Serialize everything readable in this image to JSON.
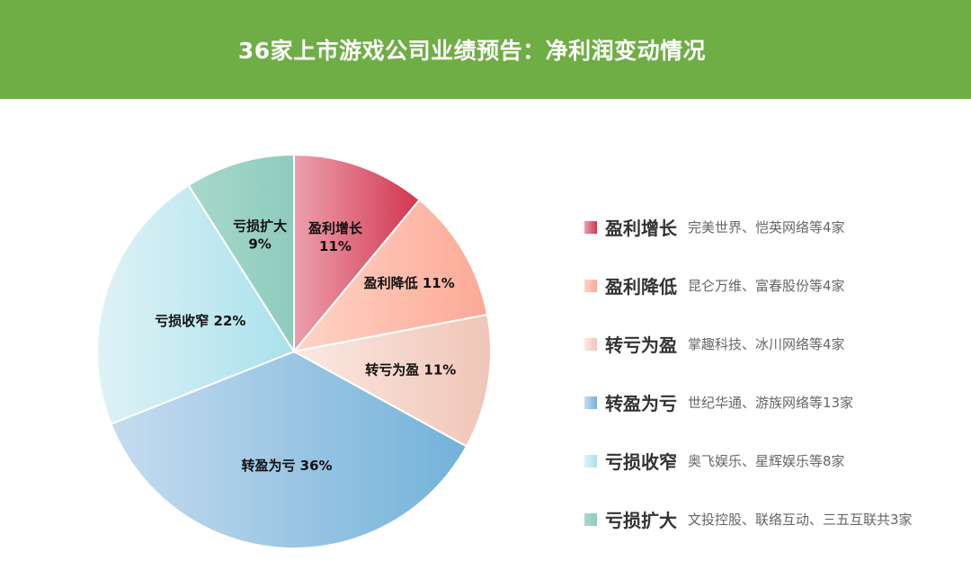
{
  "header": {
    "title": "36家上市游戏公司业绩预告：净利润变动情况",
    "background_color": "#6fad45"
  },
  "chart_data": {
    "type": "pie",
    "title": "36家上市游戏公司业绩预告：净利润变动情况",
    "legend_position": "right",
    "slices": [
      {
        "label": "盈利增长",
        "value": 11,
        "value_label": "11%",
        "count": 4,
        "desc": "完美世界、恺英网络等4家",
        "color_start": "#eda0ad",
        "color_end": "#d1364f"
      },
      {
        "label": "盈利降低",
        "value": 11,
        "value_label": "11%",
        "count": 4,
        "desc": "昆仑万维、富春股份等4家",
        "color_start": "#ffd4c6",
        "color_end": "#fca996"
      },
      {
        "label": "转亏为盈",
        "value": 11,
        "value_label": "11%",
        "count": 4,
        "desc": "掌趣科技、冰川网络等4家",
        "color_start": "#fbe9e3",
        "color_end": "#f0c5b7"
      },
      {
        "label": "转盈为亏",
        "value": 36,
        "value_label": "36%",
        "count": 13,
        "desc": "世纪华通、游族网络等13家",
        "color_start": "#c6dcef",
        "color_end": "#72b2d9"
      },
      {
        "label": "亏损收窄",
        "value": 22,
        "value_label": "22%",
        "count": 8,
        "desc": "奥飞娱乐、星辉娱乐等8家",
        "color_start": "#dff2f6",
        "color_end": "#a9e1ec"
      },
      {
        "label": "亏损扩大",
        "value": 9,
        "value_label": "9%",
        "count": 3,
        "desc": "文投控股、联络互动、三五互联共3家",
        "color_start": "#a7d9cc",
        "color_end": "#8fcbbd"
      }
    ]
  }
}
